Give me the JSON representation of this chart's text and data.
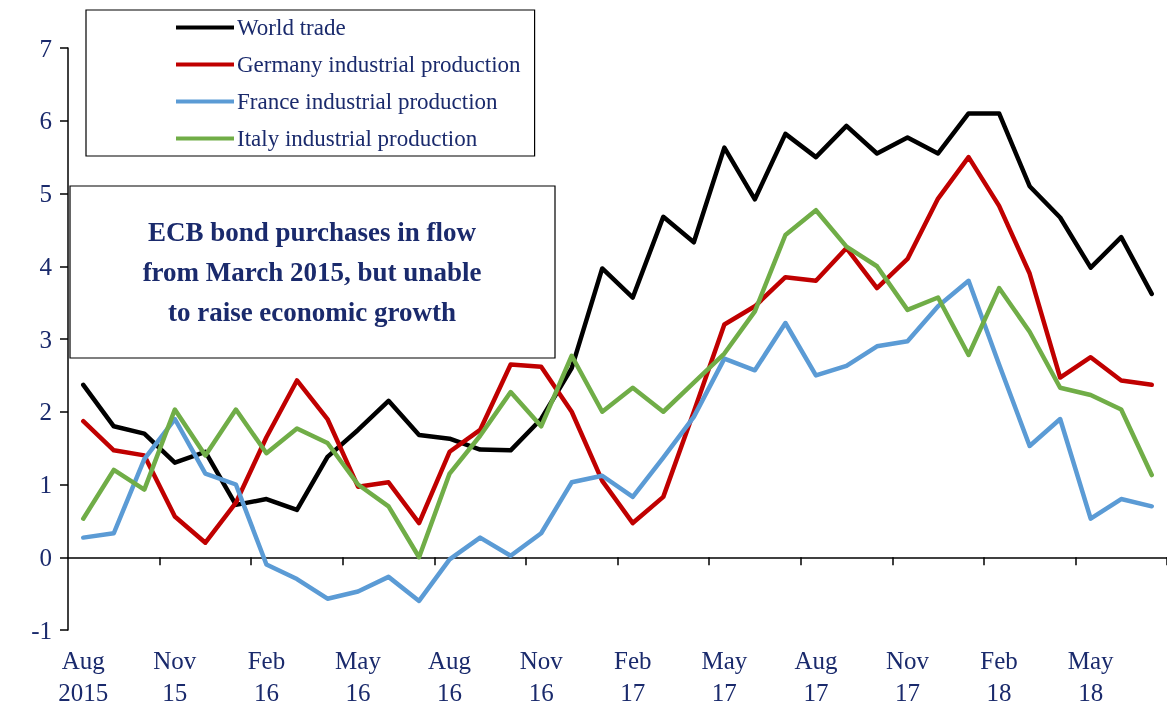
{
  "chart_data": {
    "type": "line",
    "categories": [
      "Aug\n2015",
      null,
      null,
      "Nov\n15",
      null,
      null,
      "Feb\n16",
      null,
      null,
      "May\n16",
      null,
      null,
      "Aug\n16",
      null,
      null,
      "Nov\n16",
      null,
      null,
      "Feb\n17",
      null,
      null,
      "May\n17",
      null,
      null,
      "Aug\n17",
      null,
      null,
      "Nov\n17",
      null,
      null,
      "Feb\n18",
      null,
      null,
      "May\n18",
      null,
      null
    ],
    "series": [
      {
        "name": "World trade",
        "color": "#000000",
        "values": [
          2.37,
          1.8,
          1.7,
          1.3,
          1.45,
          0.72,
          0.8,
          0.65,
          1.38,
          1.75,
          2.15,
          1.68,
          1.63,
          1.48,
          1.47,
          1.9,
          2.6,
          3.97,
          3.57,
          4.68,
          4.33,
          5.63,
          4.92,
          5.82,
          5.5,
          5.93,
          5.55,
          5.77,
          5.55,
          6.1,
          6.1,
          5.1,
          4.67,
          3.98,
          4.4,
          3.62
        ]
      },
      {
        "name": "Germany industrial production",
        "color": "#c00000",
        "values": [
          1.87,
          1.47,
          1.4,
          0.56,
          0.2,
          0.75,
          1.65,
          2.43,
          1.9,
          0.97,
          1.03,
          0.47,
          1.45,
          1.75,
          2.65,
          2.62,
          2.0,
          1.05,
          0.47,
          0.83,
          2.0,
          3.2,
          3.45,
          3.85,
          3.8,
          4.25,
          3.7,
          4.1,
          4.93,
          5.5,
          4.83,
          3.9,
          2.47,
          2.75,
          2.43,
          2.37
        ]
      },
      {
        "name": "France industrial production",
        "color": "#5b9bd5",
        "values": [
          0.27,
          0.33,
          1.35,
          1.9,
          1.15,
          1.0,
          -0.1,
          -0.3,
          -0.57,
          -0.47,
          -0.27,
          -0.6,
          -0.03,
          0.27,
          0.02,
          0.33,
          1.03,
          1.12,
          0.83,
          1.37,
          1.93,
          2.73,
          2.57,
          3.22,
          2.5,
          2.63,
          2.9,
          2.97,
          3.45,
          3.8,
          2.65,
          1.53,
          1.9,
          0.53,
          0.8,
          0.7
        ]
      },
      {
        "name": "Italy industrial production",
        "color": "#70ad47",
        "values": [
          0.53,
          1.2,
          0.93,
          2.03,
          1.4,
          2.03,
          1.43,
          1.77,
          1.57,
          1.0,
          0.7,
          0.0,
          1.15,
          1.67,
          2.27,
          1.8,
          2.77,
          2.0,
          2.33,
          2.0,
          2.4,
          2.8,
          3.38,
          4.43,
          4.77,
          4.27,
          4.0,
          3.4,
          3.57,
          2.78,
          3.7,
          3.1,
          2.33,
          2.23,
          2.03,
          1.13
        ]
      }
    ],
    "ylim": [
      -1,
      7
    ],
    "yticks": [
      -1,
      0,
      1,
      2,
      3,
      4,
      5,
      6,
      7
    ],
    "annotations": [
      "ECB bond purchases in flow\nfrom March 2015, but unable\nto raise economic growth"
    ],
    "legend": "top left",
    "marker": "none",
    "line_style": "solid"
  }
}
